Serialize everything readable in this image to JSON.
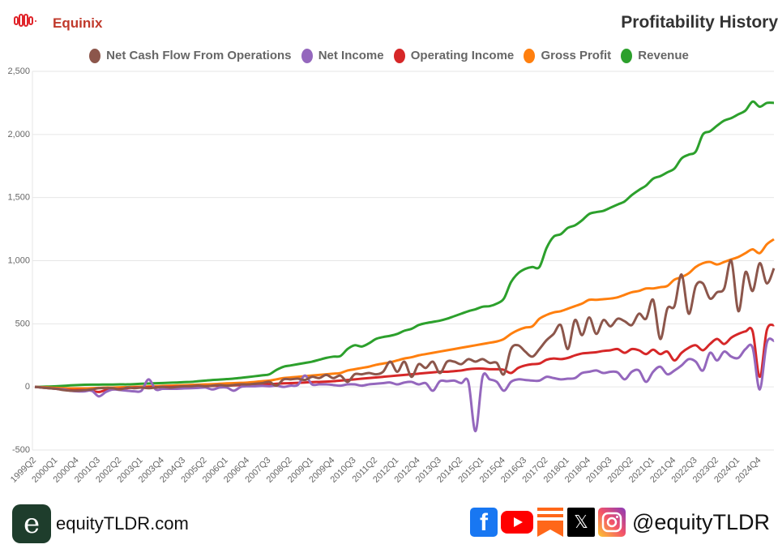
{
  "header": {
    "company": "Equinix",
    "title": "Profitability History"
  },
  "footer": {
    "site": "equityTLDR.com",
    "handle": "@equityTLDR",
    "logo_letter": "e",
    "social_icons": [
      "facebook-icon",
      "youtube-icon",
      "substack-icon",
      "x-icon",
      "instagram-icon"
    ]
  },
  "chart_data": {
    "type": "line",
    "title": "Profitability History",
    "xlabel": "",
    "ylabel": "",
    "ylim": [
      -500,
      2500
    ],
    "yticks": [
      -500,
      0,
      500,
      1000,
      1500,
      2000,
      2500
    ],
    "ytick_labels": [
      "-500",
      "0",
      "500",
      "1,000",
      "1,500",
      "2,000",
      "2,500"
    ],
    "grid": true,
    "legend_position": "top-center",
    "x_start": "1999Q2",
    "xtick_labels": [
      "1999Q2",
      "2000Q1",
      "2000Q4",
      "2001Q3",
      "2002Q2",
      "2003Q1",
      "2003Q4",
      "2004Q3",
      "2005Q2",
      "2006Q1",
      "2006Q4",
      "2007Q3",
      "2008Q2",
      "2009Q1",
      "2009Q4",
      "2010Q3",
      "2011Q2",
      "2012Q1",
      "2012Q4",
      "2013Q3",
      "2014Q2",
      "2015Q1",
      "2015Q4",
      "2016Q3",
      "2017Q2",
      "2018Q1",
      "2018Q4",
      "2019Q3",
      "2020Q2",
      "2021Q1",
      "2021Q4",
      "2022Q3",
      "2023Q2",
      "2024Q1",
      "2024Q4"
    ],
    "series": [
      {
        "name": "Net Cash Flow From Operations",
        "color": "#8c564b",
        "values": [
          0,
          -5,
          -10,
          -15,
          -25,
          -30,
          -30,
          -25,
          -20,
          -10,
          -10,
          -10,
          -20,
          -5,
          -10,
          -5,
          -10,
          -5,
          0,
          -5,
          0,
          5,
          5,
          10,
          5,
          10,
          15,
          10,
          15,
          20,
          20,
          25,
          30,
          40,
          10,
          60,
          60,
          65,
          55,
          80,
          70,
          95,
          70,
          90,
          40,
          100,
          100,
          110,
          100,
          120,
          200,
          120,
          200,
          80,
          180,
          150,
          200,
          110,
          200,
          200,
          180,
          220,
          200,
          220,
          190,
          190,
          100,
          300,
          330,
          280,
          240,
          300,
          370,
          420,
          490,
          300,
          530,
          410,
          550,
          420,
          530,
          480,
          540,
          520,
          490,
          580,
          540,
          690,
          380,
          620,
          640,
          890,
          580,
          800,
          820,
          700,
          750,
          780,
          1000,
          600,
          910,
          760,
          980,
          820,
          940
        ]
      },
      {
        "name": "Net Income",
        "color": "#9467bd",
        "values": [
          0,
          -5,
          -10,
          -15,
          -20,
          -30,
          -35,
          -35,
          -30,
          -75,
          -40,
          -20,
          -25,
          -30,
          -35,
          -30,
          60,
          -20,
          -15,
          -15,
          -15,
          -12,
          -10,
          -8,
          -5,
          -20,
          -5,
          -5,
          -30,
          0,
          5,
          5,
          8,
          5,
          10,
          0,
          10,
          15,
          90,
          20,
          20,
          20,
          15,
          10,
          20,
          20,
          10,
          20,
          25,
          30,
          35,
          20,
          35,
          40,
          20,
          30,
          -30,
          45,
          45,
          50,
          30,
          40,
          -350,
          80,
          60,
          40,
          -30,
          40,
          60,
          55,
          50,
          50,
          80,
          70,
          60,
          65,
          70,
          110,
          120,
          130,
          110,
          120,
          115,
          60,
          120,
          130,
          40,
          120,
          160,
          100,
          130,
          170,
          220,
          200,
          130,
          270,
          210,
          280,
          240,
          230,
          300,
          310,
          -20,
          350,
          365
        ]
      },
      {
        "name": "Operating Income",
        "color": "#d62728",
        "values": [
          0,
          -5,
          -10,
          -15,
          -20,
          -25,
          -25,
          -25,
          -30,
          -40,
          -25,
          -20,
          -15,
          -10,
          -5,
          -5,
          -3,
          -2,
          0,
          0,
          2,
          3,
          5,
          5,
          6,
          8,
          10,
          10,
          12,
          14,
          16,
          18,
          20,
          22,
          25,
          28,
          30,
          32,
          35,
          38,
          40,
          42,
          45,
          50,
          55,
          60,
          65,
          70,
          75,
          80,
          85,
          90,
          95,
          100,
          105,
          110,
          115,
          120,
          120,
          125,
          130,
          140,
          145,
          145,
          140,
          140,
          135,
          110,
          150,
          170,
          180,
          185,
          215,
          225,
          220,
          230,
          250,
          265,
          270,
          275,
          285,
          290,
          300,
          270,
          300,
          290,
          260,
          295,
          260,
          280,
          210,
          270,
          310,
          330,
          290,
          340,
          380,
          340,
          390,
          420,
          440,
          440,
          80,
          450,
          490
        ]
      },
      {
        "name": "Gross Profit",
        "color": "#ff7f0e",
        "values": [
          0,
          -2,
          -5,
          -8,
          -10,
          -12,
          -12,
          -12,
          -10,
          -8,
          -5,
          -5,
          -3,
          -2,
          0,
          2,
          4,
          6,
          8,
          10,
          12,
          14,
          16,
          18,
          20,
          22,
          25,
          28,
          30,
          32,
          35,
          40,
          45,
          50,
          60,
          70,
          75,
          80,
          85,
          90,
          95,
          100,
          105,
          110,
          130,
          140,
          150,
          160,
          175,
          185,
          195,
          210,
          225,
          235,
          250,
          260,
          270,
          280,
          290,
          300,
          310,
          320,
          330,
          340,
          350,
          360,
          380,
          420,
          450,
          470,
          480,
          540,
          570,
          590,
          600,
          620,
          640,
          660,
          690,
          690,
          695,
          700,
          710,
          730,
          750,
          760,
          780,
          780,
          790,
          800,
          850,
          870,
          900,
          950,
          980,
          990,
          970,
          990,
          1010,
          1030,
          1060,
          1090,
          1060,
          1130,
          1170
        ]
      },
      {
        "name": "Revenue",
        "color": "#2ca02c",
        "values": [
          0,
          1,
          3,
          5,
          8,
          12,
          15,
          17,
          18,
          18,
          19,
          19,
          20,
          20,
          22,
          25,
          27,
          29,
          31,
          33,
          35,
          38,
          40,
          45,
          50,
          55,
          58,
          62,
          66,
          72,
          78,
          85,
          92,
          100,
          135,
          160,
          170,
          180,
          190,
          200,
          215,
          230,
          240,
          245,
          300,
          330,
          320,
          345,
          380,
          395,
          405,
          420,
          445,
          460,
          490,
          505,
          515,
          525,
          540,
          560,
          580,
          600,
          615,
          635,
          640,
          660,
          700,
          830,
          900,
          935,
          950,
          950,
          1100,
          1190,
          1210,
          1260,
          1280,
          1320,
          1370,
          1385,
          1395,
          1420,
          1445,
          1470,
          1520,
          1560,
          1595,
          1650,
          1670,
          1700,
          1730,
          1810,
          1840,
          1865,
          2000,
          2025,
          2070,
          2110,
          2130,
          2160,
          2190,
          2260,
          2220,
          2250,
          2250
        ]
      }
    ]
  }
}
